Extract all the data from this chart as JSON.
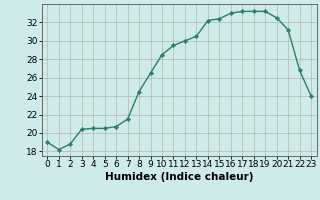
{
  "x": [
    0,
    1,
    2,
    3,
    4,
    5,
    6,
    7,
    8,
    9,
    10,
    11,
    12,
    13,
    14,
    15,
    16,
    17,
    18,
    19,
    20,
    21,
    22,
    23
  ],
  "y": [
    19.0,
    18.2,
    18.8,
    20.4,
    20.5,
    20.5,
    20.7,
    21.5,
    24.5,
    26.5,
    28.5,
    29.5,
    30.0,
    30.5,
    32.2,
    32.4,
    33.0,
    33.2,
    33.2,
    33.2,
    32.5,
    31.2,
    26.8,
    24.0
  ],
  "line_color": "#2e7d6e",
  "marker": "D",
  "marker_size": 2.2,
  "bg_color": "#ceeaea",
  "grid_color": "#b8b8a0",
  "xlabel": "Humidex (Indice chaleur)",
  "ylim": [
    17.5,
    34.0
  ],
  "xlim": [
    -0.5,
    23.5
  ],
  "yticks": [
    18,
    20,
    22,
    24,
    26,
    28,
    30,
    32
  ],
  "xticks": [
    0,
    1,
    2,
    3,
    4,
    5,
    6,
    7,
    8,
    9,
    10,
    11,
    12,
    13,
    14,
    15,
    16,
    17,
    18,
    19,
    20,
    21,
    22,
    23
  ],
  "tick_fontsize": 6.5,
  "xlabel_fontsize": 7.5,
  "linewidth": 1.0
}
